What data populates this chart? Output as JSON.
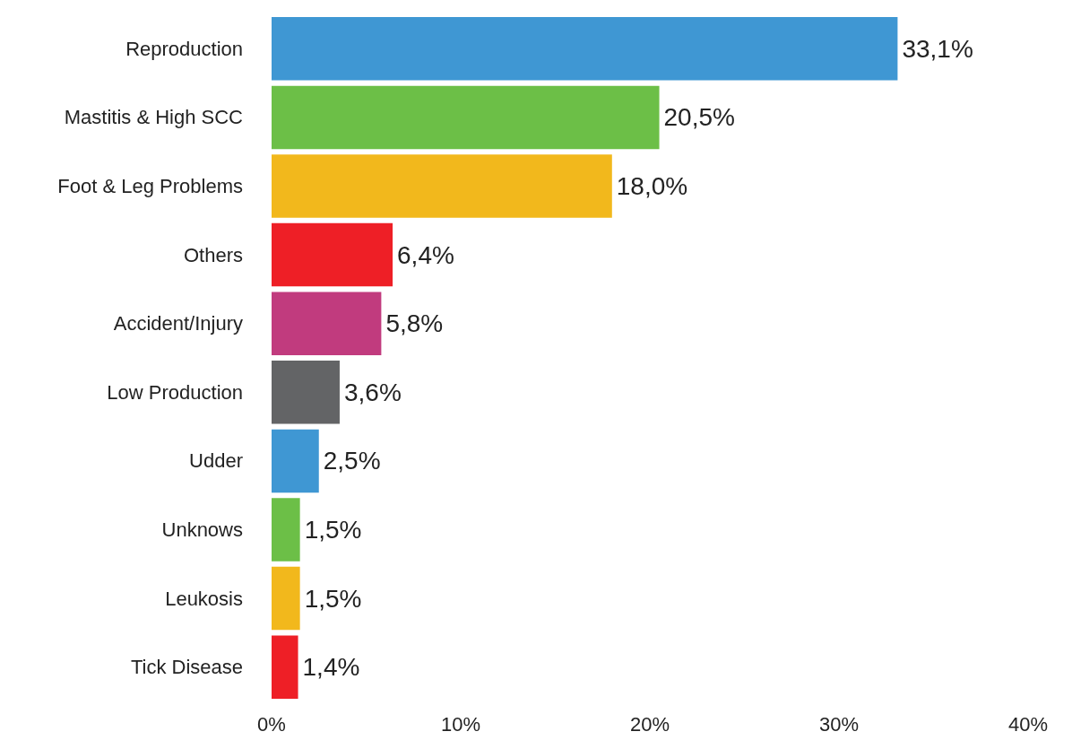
{
  "chart_data": {
    "type": "bar",
    "orientation": "horizontal",
    "categories": [
      "Reproduction",
      "Mastitis & High SCC",
      "Foot & Leg Problems",
      "Others",
      "Accident/Injury",
      "Low Production",
      "Udder",
      "Unknows",
      "Leukosis",
      "Tick Disease"
    ],
    "values": [
      33.1,
      20.5,
      18.0,
      6.4,
      5.8,
      3.6,
      2.5,
      1.5,
      1.5,
      1.4
    ],
    "value_labels": [
      "33,1%",
      "20,5%",
      "18,0%",
      "6,4%",
      "5,8%",
      "3,6%",
      "2,5%",
      "1,5%",
      "1,5%",
      "1,4%"
    ],
    "colors": [
      "#3f97d3",
      "#6cbf47",
      "#f2b81c",
      "#ee1f26",
      "#c13b7e",
      "#636466",
      "#3f97d3",
      "#6cbf47",
      "#f2b81c",
      "#ee1f26"
    ],
    "xlim": [
      0,
      40
    ],
    "xticks": [
      {
        "value": 0,
        "label": "0%"
      },
      {
        "value": 10,
        "label": "10%"
      },
      {
        "value": 20,
        "label": "20%"
      },
      {
        "value": 30,
        "label": "30%"
      },
      {
        "value": 40,
        "label": "40%"
      }
    ],
    "grid": false
  }
}
